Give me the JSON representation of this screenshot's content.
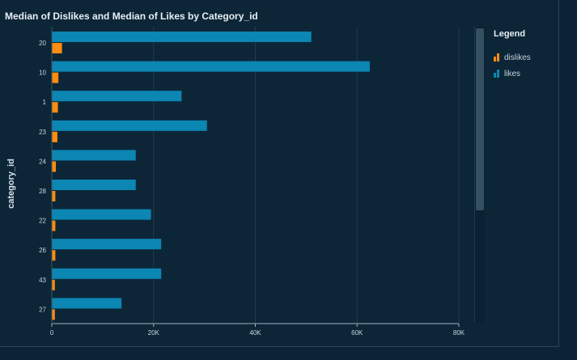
{
  "title": "Median of Dislikes and Median of Likes by Category_id",
  "colors": {
    "likes": "#0c86b3",
    "dislikes": "#ff8c10",
    "grid": "#1f3b4d"
  },
  "legend": {
    "title": "Legend",
    "items": [
      {
        "label": "dislikes",
        "color": "#ff8c10"
      },
      {
        "label": "likes",
        "color": "#0c86b3"
      }
    ]
  },
  "chart_data": {
    "type": "bar",
    "orientation": "horizontal",
    "title": "Median of Dislikes and Median of Likes by Category_id",
    "ylabel": "category_id",
    "xlabel": "",
    "categories": [
      "20",
      "10",
      "1",
      "23",
      "24",
      "28",
      "22",
      "26",
      "43",
      "27"
    ],
    "series": [
      {
        "name": "likes",
        "values": [
          51000,
          62500,
          25500,
          30500,
          16500,
          16500,
          19500,
          21500,
          21500,
          13700
        ]
      },
      {
        "name": "dislikes",
        "values": [
          2000,
          1300,
          1200,
          1100,
          800,
          700,
          700,
          700,
          600,
          600
        ]
      }
    ],
    "xlim": [
      0,
      80000
    ],
    "xticks": [
      "0",
      "20K",
      "40K",
      "60K",
      "80K"
    ],
    "xtick_values": [
      0,
      20000,
      40000,
      60000,
      80000
    ],
    "grid": true,
    "legend_position": "right"
  }
}
